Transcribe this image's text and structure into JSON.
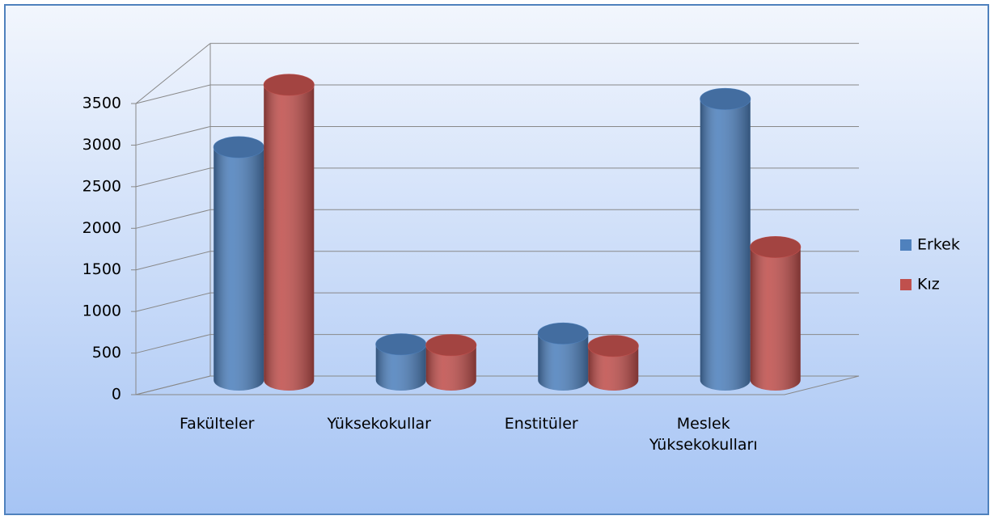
{
  "chart_data": {
    "type": "bar",
    "categories": [
      "Fakülteler",
      "Yüksekokullar",
      "Enstitüler",
      "Meslek Yüksekokulları"
    ],
    "series": [
      {
        "name": "Erkek",
        "color": "#4f81bd",
        "values": [
          2800,
          430,
          560,
          3380
        ]
      },
      {
        "name": "Kız",
        "color": "#c0504d",
        "values": [
          3550,
          420,
          410,
          1600
        ]
      }
    ],
    "ylim": [
      0,
      4000
    ],
    "yticks": [
      0,
      500,
      1000,
      1500,
      2000,
      2500,
      3000,
      3500
    ],
    "grid": true,
    "legend": "right"
  }
}
